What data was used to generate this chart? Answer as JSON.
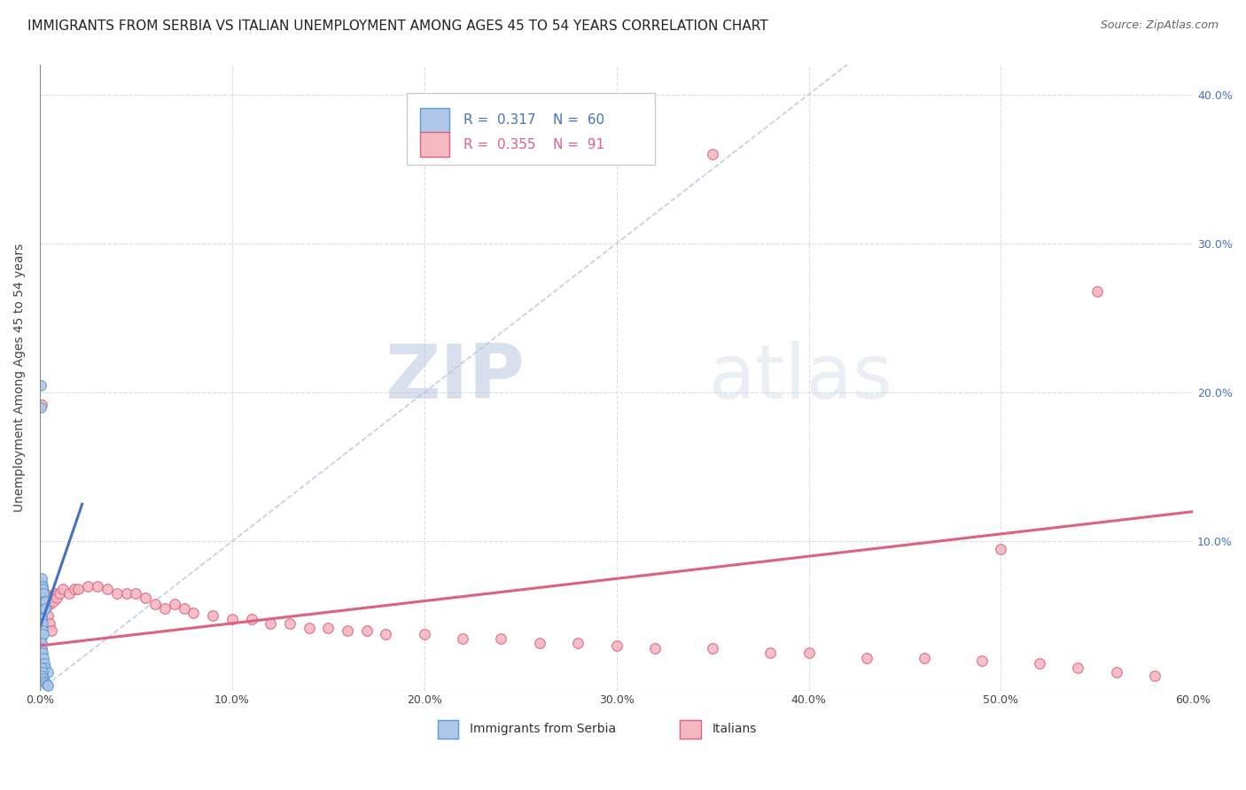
{
  "title": "IMMIGRANTS FROM SERBIA VS ITALIAN UNEMPLOYMENT AMONG AGES 45 TO 54 YEARS CORRELATION CHART",
  "source": "Source: ZipAtlas.com",
  "ylabel": "Unemployment Among Ages 45 to 54 years",
  "xlim": [
    0.0,
    0.6
  ],
  "ylim": [
    0.0,
    0.42
  ],
  "xticks": [
    0.0,
    0.1,
    0.2,
    0.3,
    0.4,
    0.5,
    0.6
  ],
  "xtick_labels": [
    "0.0%",
    "10.0%",
    "20.0%",
    "30.0%",
    "40.0%",
    "50.0%",
    "60.0%"
  ],
  "yticks": [
    0.0,
    0.1,
    0.2,
    0.3,
    0.4
  ],
  "ytick_labels": [
    "",
    "10.0%",
    "20.0%",
    "30.0%",
    "40.0%"
  ],
  "legend_blue_label": "Immigrants from Serbia",
  "legend_pink_label": "Italians",
  "R_blue": "0.317",
  "N_blue": "60",
  "R_pink": "0.355",
  "N_pink": "91",
  "blue_color": "#aec6e8",
  "blue_edge_color": "#5b9bd5",
  "pink_color": "#f4b8c1",
  "pink_edge_color": "#e06080",
  "trend_blue_color": "#4472c4",
  "trend_pink_color": "#e06080",
  "diag_color": "#b0c4de",
  "watermark_color": "#dde5f0",
  "background_color": "#ffffff",
  "grid_color": "#d0d0d0",
  "title_fontsize": 11,
  "axis_fontsize": 10,
  "tick_fontsize": 9,
  "legend_fontsize": 11,
  "watermark_zip": "ZIP",
  "watermark_atlas": "atlas",
  "marker_size": 70,
  "serbia_x": [
    0.0005,
    0.0005,
    0.0005,
    0.0005,
    0.0005,
    0.0005,
    0.0005,
    0.0005,
    0.0005,
    0.0005,
    0.0008,
    0.0008,
    0.0008,
    0.0008,
    0.001,
    0.001,
    0.001,
    0.001,
    0.001,
    0.001,
    0.0012,
    0.0012,
    0.0015,
    0.0015,
    0.002,
    0.002,
    0.002,
    0.0025,
    0.003,
    0.003,
    0.0005,
    0.0005,
    0.0005,
    0.0008,
    0.001,
    0.001,
    0.001,
    0.0012,
    0.0015,
    0.002,
    0.0005,
    0.0005,
    0.0007,
    0.001,
    0.001,
    0.0015,
    0.002,
    0.0025,
    0.003,
    0.004,
    0.0005,
    0.0007,
    0.001,
    0.0012,
    0.0015,
    0.002,
    0.0025,
    0.003,
    0.0035,
    0.004
  ],
  "serbia_y": [
    0.205,
    0.19,
    0.065,
    0.06,
    0.055,
    0.05,
    0.045,
    0.04,
    0.035,
    0.03,
    0.072,
    0.068,
    0.065,
    0.06,
    0.075,
    0.068,
    0.06,
    0.055,
    0.05,
    0.045,
    0.07,
    0.062,
    0.068,
    0.06,
    0.065,
    0.06,
    0.055,
    0.058,
    0.06,
    0.055,
    0.04,
    0.035,
    0.03,
    0.042,
    0.048,
    0.042,
    0.038,
    0.045,
    0.04,
    0.038,
    0.025,
    0.022,
    0.028,
    0.032,
    0.028,
    0.025,
    0.022,
    0.018,
    0.015,
    0.012,
    0.01,
    0.008,
    0.015,
    0.012,
    0.01,
    0.008,
    0.006,
    0.005,
    0.004,
    0.003
  ],
  "italian_x": [
    0.0005,
    0.0005,
    0.0005,
    0.0005,
    0.0005,
    0.0005,
    0.0005,
    0.0005,
    0.0005,
    0.0005,
    0.0008,
    0.0008,
    0.0008,
    0.001,
    0.001,
    0.001,
    0.001,
    0.001,
    0.001,
    0.001,
    0.0012,
    0.0012,
    0.0015,
    0.0015,
    0.002,
    0.002,
    0.002,
    0.002,
    0.0025,
    0.003,
    0.003,
    0.004,
    0.004,
    0.005,
    0.005,
    0.006,
    0.007,
    0.008,
    0.009,
    0.01,
    0.012,
    0.015,
    0.018,
    0.02,
    0.025,
    0.03,
    0.035,
    0.04,
    0.045,
    0.05,
    0.055,
    0.06,
    0.065,
    0.07,
    0.075,
    0.08,
    0.09,
    0.1,
    0.11,
    0.12,
    0.13,
    0.14,
    0.15,
    0.16,
    0.17,
    0.18,
    0.2,
    0.22,
    0.24,
    0.26,
    0.28,
    0.3,
    0.32,
    0.35,
    0.38,
    0.4,
    0.43,
    0.46,
    0.49,
    0.52,
    0.54,
    0.56,
    0.58,
    0.003,
    0.004,
    0.005,
    0.006,
    0.35,
    0.5,
    0.55,
    0.001
  ],
  "italian_y": [
    0.062,
    0.058,
    0.055,
    0.05,
    0.048,
    0.045,
    0.04,
    0.038,
    0.035,
    0.032,
    0.065,
    0.06,
    0.058,
    0.068,
    0.062,
    0.058,
    0.055,
    0.052,
    0.048,
    0.045,
    0.065,
    0.06,
    0.068,
    0.062,
    0.065,
    0.06,
    0.058,
    0.055,
    0.062,
    0.065,
    0.06,
    0.062,
    0.058,
    0.06,
    0.058,
    0.062,
    0.06,
    0.065,
    0.062,
    0.065,
    0.068,
    0.065,
    0.068,
    0.068,
    0.07,
    0.07,
    0.068,
    0.065,
    0.065,
    0.065,
    0.062,
    0.058,
    0.055,
    0.058,
    0.055,
    0.052,
    0.05,
    0.048,
    0.048,
    0.045,
    0.045,
    0.042,
    0.042,
    0.04,
    0.04,
    0.038,
    0.038,
    0.035,
    0.035,
    0.032,
    0.032,
    0.03,
    0.028,
    0.028,
    0.025,
    0.025,
    0.022,
    0.022,
    0.02,
    0.018,
    0.015,
    0.012,
    0.01,
    0.055,
    0.05,
    0.045,
    0.04,
    0.36,
    0.095,
    0.268,
    0.192
  ],
  "blue_trend_x": [
    0.0,
    0.022
  ],
  "blue_trend_y": [
    0.042,
    0.125
  ],
  "pink_trend_x": [
    0.0,
    0.6
  ],
  "pink_trend_y": [
    0.03,
    0.12
  ]
}
